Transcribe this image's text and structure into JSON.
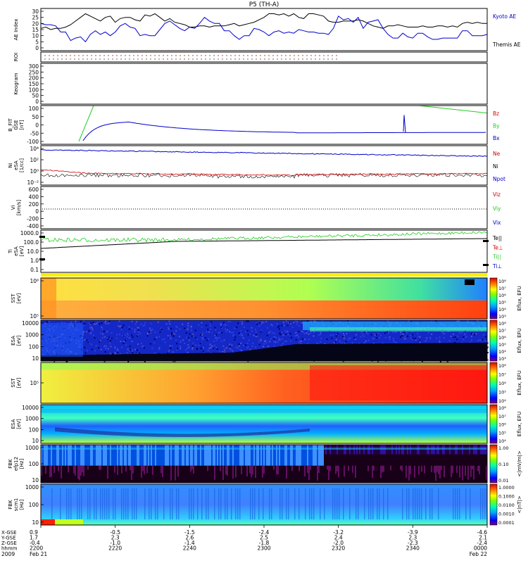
{
  "title": "P5 (TH-A)",
  "colors": {
    "red": "#d40000",
    "green": "#22cc22",
    "blue": "#0000cc",
    "black": "#000000"
  },
  "chart_data": {
    "type": "line",
    "x_axis": {
      "rows": [
        {
          "label": "X-GSE",
          "values": [
            "0.9",
            "-0.5",
            "-1.5",
            "-2.4",
            "-3.2",
            "-3.9",
            "-4.6"
          ]
        },
        {
          "label": "Y-GSE",
          "values": [
            "1.7",
            "2.3",
            "2.6",
            "2.5",
            "2.4",
            "2.3",
            "2.1"
          ]
        },
        {
          "label": "Z-GSE",
          "values": [
            "-0.4",
            "-1.0",
            "-1.4",
            "-1.8",
            "-2.0",
            "-2.3",
            "-2.4"
          ]
        },
        {
          "label": "hhmm",
          "values": [
            "2200",
            "2220",
            "2240",
            "2300",
            "2320",
            "2340",
            "0000"
          ]
        }
      ],
      "year": "2009",
      "start_date": "Feb 21",
      "end_date": "Feb 22"
    },
    "panels": [
      {
        "id": "ae",
        "ylabel": "AE Index",
        "ticks": [
          "30",
          "25",
          "20",
          "15",
          "10",
          "5",
          "0"
        ],
        "ylim": [
          0,
          30
        ],
        "legend": [
          {
            "name": "Kyoto AE",
            "color": "#0000cc"
          },
          {
            "name": "Themis AE",
            "color": "#000000"
          }
        ],
        "series": [
          {
            "name": "Themis AE",
            "color": "#000000",
            "values": [
              16,
              17,
              15,
              16,
              16,
              17,
              19,
              22,
              25,
              28,
              26,
              24,
              22,
              25,
              26,
              21,
              24,
              25,
              25,
              23,
              22,
              27,
              26,
              28,
              25,
              22,
              24,
              21,
              20,
              19,
              17,
              17,
              18,
              18,
              17,
              18,
              18,
              18,
              19,
              20,
              18,
              19,
              20,
              21,
              23,
              25,
              28,
              28,
              27,
              28,
              26,
              28,
              25,
              24,
              28,
              28,
              27,
              26,
              22,
              21,
              21,
              22,
              22,
              22,
              23,
              22,
              20,
              18,
              17,
              16,
              18,
              18,
              19,
              18,
              17,
              17,
              17,
              18,
              17,
              17,
              18,
              18,
              17,
              18,
              17,
              20,
              21,
              20,
              21,
              20,
              20
            ]
          },
          {
            "name": "Kyoto AE",
            "color": "#0000cc",
            "values": [
              20,
              19,
              19,
              18,
              13,
              13,
              6,
              8,
              9,
              5,
              11,
              14,
              11,
              13,
              10,
              13,
              18,
              20,
              17,
              16,
              10,
              11,
              10,
              10,
              15,
              20,
              22,
              19,
              16,
              14,
              17,
              16,
              20,
              25,
              22,
              20,
              20,
              14,
              14,
              10,
              7,
              10,
              10,
              16,
              15,
              13,
              10,
              13,
              14,
              12,
              13,
              12,
              15,
              14,
              13,
              13,
              12,
              12,
              11,
              16,
              26,
              23,
              24,
              21,
              25,
              16,
              21,
              22,
              23,
              16,
              11,
              8,
              8,
              12,
              9,
              8,
              12,
              12,
              9,
              7,
              7,
              8,
              8,
              8,
              8,
              14,
              14,
              10,
              10,
              10,
              11
            ]
          }
        ]
      },
      {
        "id": "roi",
        "ylabel": "ROI"
      },
      {
        "id": "keogram",
        "ylabel": "Keogram",
        "ticks": [
          "300",
          "250",
          "200",
          "150",
          "100",
          "50",
          "0"
        ],
        "ylim": [
          0,
          300
        ]
      },
      {
        "id": "bfit",
        "ylabel_lines": [
          "B_FIT",
          "GSE",
          "[nT]"
        ],
        "ticks": [
          "100",
          "50",
          "0",
          "-50",
          "-100"
        ],
        "ylim": [
          -100,
          100
        ],
        "legend": [
          {
            "name": "Bz",
            "color": "#d40000"
          },
          {
            "name": "By",
            "color": "#22cc22"
          },
          {
            "name": "Bx",
            "color": "#0000cc"
          }
        ]
      },
      {
        "id": "ni",
        "ylabel_lines": [
          "Ni",
          "eSA",
          "[1/cc]"
        ],
        "ticks": [
          "10⁴",
          "10²",
          "10⁰",
          "10⁻²"
        ],
        "legend": [
          {
            "name": "Ne",
            "color": "#d40000"
          },
          {
            "name": "Ni",
            "color": "#000000"
          },
          {
            "name": "Npot",
            "color": "#0000cc"
          }
        ]
      },
      {
        "id": "vi",
        "ylabel_lines": [
          "Vi",
          "[km/s]"
        ],
        "ticks": [
          "600",
          "400",
          "200",
          "0",
          "-200",
          "-400"
        ],
        "ylim": [
          -500,
          700
        ],
        "legend": [
          {
            "name": "Viz",
            "color": "#d40000"
          },
          {
            "name": "Viy",
            "color": "#22cc22"
          },
          {
            "name": "Vix",
            "color": "#0000cc"
          }
        ]
      },
      {
        "id": "ti",
        "ylabel_lines": [
          "Ti",
          "eSA",
          "[eV]"
        ],
        "ticks": [
          "1000.0",
          "100.0",
          "10.0",
          "1.0",
          "0.1"
        ],
        "legend": [
          {
            "name": "Te||",
            "color": "#000000"
          },
          {
            "name": "Te⊥",
            "color": "#d40000"
          },
          {
            "name": "Ti||",
            "color": "#22cc22"
          },
          {
            "name": "Ti⊥",
            "color": "#0000cc"
          }
        ]
      },
      {
        "id": "sst1",
        "ylabel_lines": [
          "SST",
          "[eV]"
        ],
        "ticks": [
          "10⁶",
          "10⁵"
        ],
        "cbar_ticks": [
          "10⁸",
          "10⁷",
          "10⁶",
          "10⁵",
          "10⁴",
          "10³"
        ],
        "cbar_label": "Eflux, EFU"
      },
      {
        "id": "esa1",
        "ylabel_lines": [
          "ESA",
          "[eV]"
        ],
        "ticks": [
          "10000",
          "1000",
          "100",
          "10"
        ],
        "cbar_ticks": [
          "10⁸",
          "10⁷",
          "10⁶",
          "10⁵",
          "10⁴",
          "10³"
        ],
        "cbar_label": "Eflux, EFU"
      },
      {
        "id": "sst2",
        "ylabel_lines": [
          "SST",
          "[eV]"
        ],
        "ticks": [
          "10⁵"
        ],
        "cbar_ticks": [
          "10⁸",
          "10⁷",
          "10⁶",
          "10⁵",
          "10⁴"
        ],
        "cbar_label": "Eflux, EFU"
      },
      {
        "id": "esa2",
        "ylabel_lines": [
          "ESA",
          "[eV]"
        ],
        "ticks": [
          "10000",
          "1000",
          "100",
          "10"
        ],
        "cbar_ticks": [
          "10⁸",
          "10⁷",
          "10⁶",
          "10⁵",
          "10⁴"
        ],
        "cbar_label": "Eflux, EFU"
      },
      {
        "id": "fbk1",
        "ylabel_lines": [
          "FBK",
          "efp12",
          "[Hz]"
        ],
        "ticks": [
          "1000",
          "100",
          "10"
        ],
        "cbar_ticks": [
          "1.00",
          "0.10",
          "0.01"
        ],
        "cbar_label": "<|mV/m|>"
      },
      {
        "id": "fbk2",
        "ylabel_lines": [
          "FBK",
          "scm1",
          "[Hz]"
        ],
        "ticks": [
          "1000",
          "100",
          "10"
        ],
        "cbar_ticks": [
          "1.0000",
          "0.1000",
          "0.0100",
          "0.0010",
          "0.0001"
        ],
        "cbar_label": "<|nT|>"
      }
    ]
  }
}
